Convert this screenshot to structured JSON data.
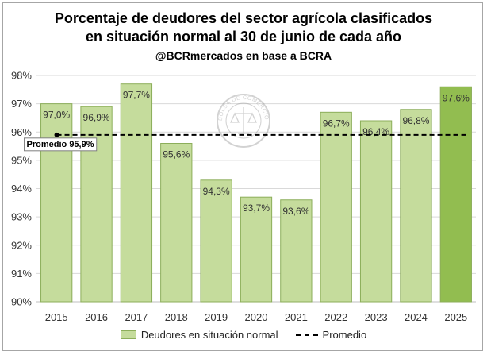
{
  "header": {
    "title_line1": "Porcentaje de deudores del sector agrícola clasificados",
    "title_line2": "en situación normal al 30 de junio de cada año",
    "subtitle": "@BCRmercados en base a BCRA"
  },
  "watermark": {
    "text": "BOLSA DE COMERCIO DE ROSARIO",
    "icon": "bcr-seal-icon"
  },
  "colors": {
    "bar": "#c5dc9c",
    "bar_border": "#8cae5a",
    "bar_highlight": "#92bd50",
    "average_line": "#000000"
  },
  "chart_data": {
    "type": "bar",
    "categories": [
      "2015",
      "2016",
      "2017",
      "2018",
      "2019",
      "2020",
      "2021",
      "2022",
      "2023",
      "2024",
      "2025"
    ],
    "series": [
      {
        "name": "Deudores en situación normal",
        "values": [
          97.0,
          96.9,
          97.7,
          95.6,
          94.3,
          93.7,
          93.6,
          96.7,
          96.4,
          96.8,
          97.6
        ],
        "labels": [
          "97,0%",
          "96,9%",
          "97,7%",
          "95,6%",
          "94,3%",
          "93,7%",
          "93,6%",
          "96,7%",
          "96,4%",
          "96,8%",
          "97,6%"
        ]
      },
      {
        "name": "Promedio",
        "type": "line",
        "value": 95.9,
        "label": "Promedio 95,9%"
      }
    ],
    "highlighted_category": "2025",
    "ylim": [
      90,
      98
    ],
    "yticks": [
      90,
      91,
      92,
      93,
      94,
      95,
      96,
      97,
      98
    ],
    "ytick_labels": [
      "90%",
      "91%",
      "92%",
      "93%",
      "94%",
      "95%",
      "96%",
      "97%",
      "98%"
    ],
    "grid": true,
    "legend_position": "bottom"
  }
}
